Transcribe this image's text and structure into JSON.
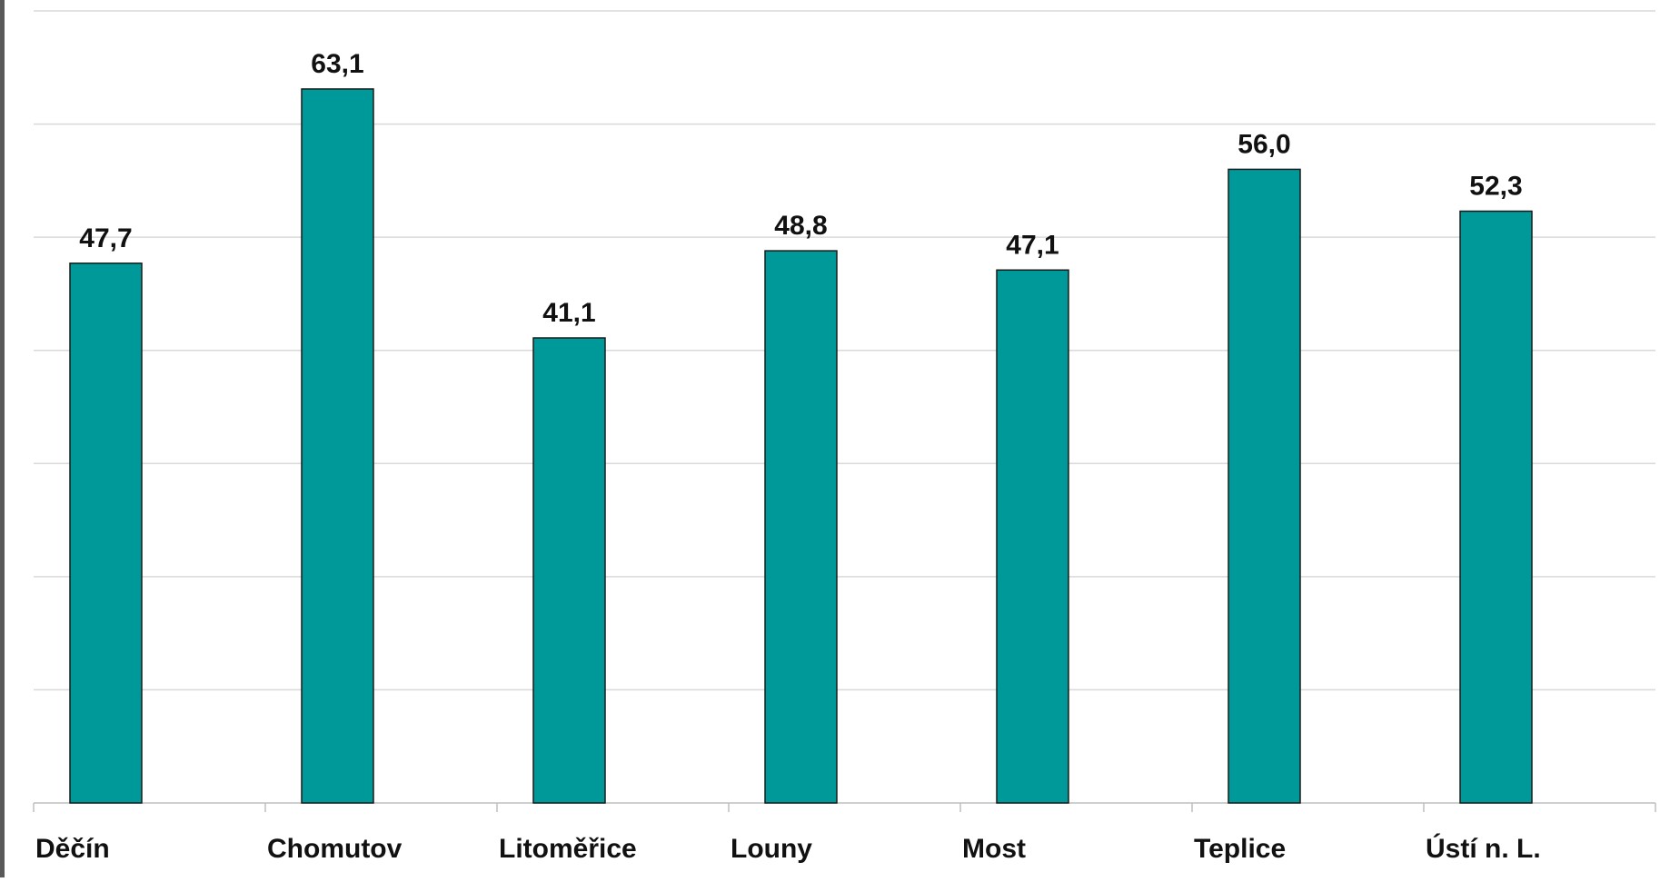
{
  "chart_data": {
    "type": "bar",
    "categories": [
      "Děčín",
      "Chomutov",
      "Litoměřice",
      "Louny",
      "Most",
      "Teplice",
      "Ústí n. L."
    ],
    "values": [
      47.7,
      63.1,
      41.1,
      48.8,
      47.1,
      56.0,
      52.3
    ],
    "value_labels": [
      "47,7",
      "63,1",
      "41,1",
      "48,8",
      "47,1",
      "56,0",
      "52,3"
    ],
    "title": "",
    "xlabel": "",
    "ylabel": "",
    "ylim": [
      0,
      70
    ],
    "grid": true,
    "legend": "none",
    "colors": {
      "bar": "#009999",
      "bar_outline": "#1a1a1a",
      "grid": "#d9d9d9",
      "axis": "#bfbfbf",
      "frame": "#595959",
      "text": "#111111"
    }
  }
}
